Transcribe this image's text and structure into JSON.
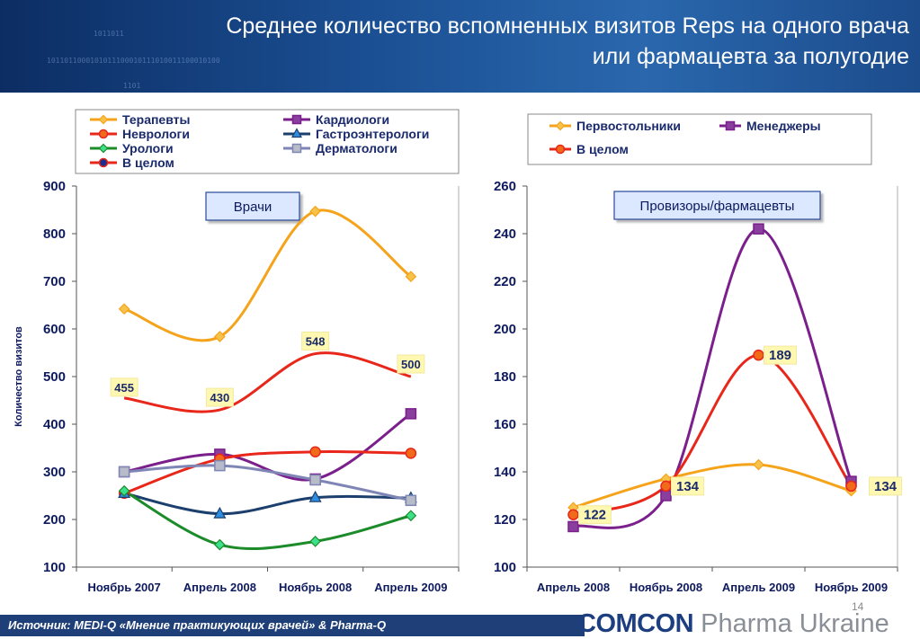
{
  "slide": {
    "title_line1": "Среднее количество вспомненных визитов Reps на одного врача",
    "title_line2": "или фармацевта за полугодие",
    "source": "Источник: MEDI-Q «Мнение практикующих врачей» & Pharma-Q",
    "page_number": "14",
    "logo_comcon": "COMCON",
    "logo_pharma": "Pharma Ukraine",
    "header_deco_1": "1011011",
    "header_deco_2": "1011011000101011100010111010011100010100",
    "header_deco_3": "1101"
  },
  "chart_data": [
    {
      "type": "line",
      "panel_label": "Врачи",
      "ylabel": "Количество визитов",
      "ylim": [
        100,
        900
      ],
      "yticks": [
        100,
        200,
        300,
        400,
        500,
        600,
        700,
        800,
        900
      ],
      "categories": [
        "Ноябрь 2007",
        "Апрель 2008",
        "Ноябрь 2008",
        "Апрель 2009"
      ],
      "legend_placement": "top",
      "series": [
        {
          "name": "Терапевты",
          "values": [
            642,
            584,
            847,
            710
          ],
          "color": "#f5a31a",
          "marker": "diamond",
          "marker_fill": "#f7c24a"
        },
        {
          "name": "Кардиологи",
          "values": [
            300,
            337,
            285,
            422
          ],
          "color": "#7b1f8c",
          "marker": "square",
          "marker_fill": "#8a3f9e"
        },
        {
          "name": "Неврологи",
          "values": [
            255,
            327,
            342,
            339
          ],
          "color": "#e8261a",
          "marker": "circle",
          "marker_fill": "#f06a1a",
          "data_labels": [
            "455",
            "430",
            "548",
            "500"
          ],
          "labels_series": "В целом"
        },
        {
          "name": "Гастроэнтерологи",
          "values": [
            255,
            212,
            246,
            245
          ],
          "color": "#1c3f6e",
          "marker": "triangle",
          "marker_fill": "#2d8ee0"
        },
        {
          "name": "Урологи",
          "values": [
            260,
            147,
            154,
            208
          ],
          "color": "#1c8c2a",
          "marker": "diamond",
          "marker_fill": "#3de08a"
        },
        {
          "name": "Дерматологи",
          "values": [
            300,
            313,
            283,
            240
          ],
          "color": "#7f86b5",
          "marker": "square",
          "marker_fill": "#b8bcc8"
        },
        {
          "name": "В целом",
          "values": [
            455,
            430,
            548,
            500
          ],
          "color": "#e8261a",
          "marker": "circle",
          "marker_fill": "#1c2f8c",
          "show_markers": false
        }
      ]
    },
    {
      "type": "line",
      "panel_label": "Провизоры/фармацевты",
      "ylim": [
        100,
        260
      ],
      "yticks": [
        100,
        120,
        140,
        160,
        180,
        200,
        220,
        240,
        260
      ],
      "categories": [
        "Апрель 2008",
        "Ноябрь 2008",
        "Апрель 2009",
        "Ноябрь 2009"
      ],
      "legend_placement": "top",
      "series": [
        {
          "name": "Первостольники",
          "values": [
            125,
            137,
            143,
            132
          ],
          "color": "#f5a31a",
          "marker": "diamond",
          "marker_fill": "#f7c24a"
        },
        {
          "name": "Менеджеры",
          "values": [
            117,
            130,
            242,
            136
          ],
          "color": "#7b1f8c",
          "marker": "square",
          "marker_fill": "#8a3f9e"
        },
        {
          "name": "В целом",
          "values": [
            122,
            134,
            189,
            134
          ],
          "color": "#e8261a",
          "marker": "circle",
          "marker_fill": "#f06a1a",
          "data_labels": [
            "122",
            "134",
            "189",
            "134"
          ]
        }
      ]
    }
  ]
}
